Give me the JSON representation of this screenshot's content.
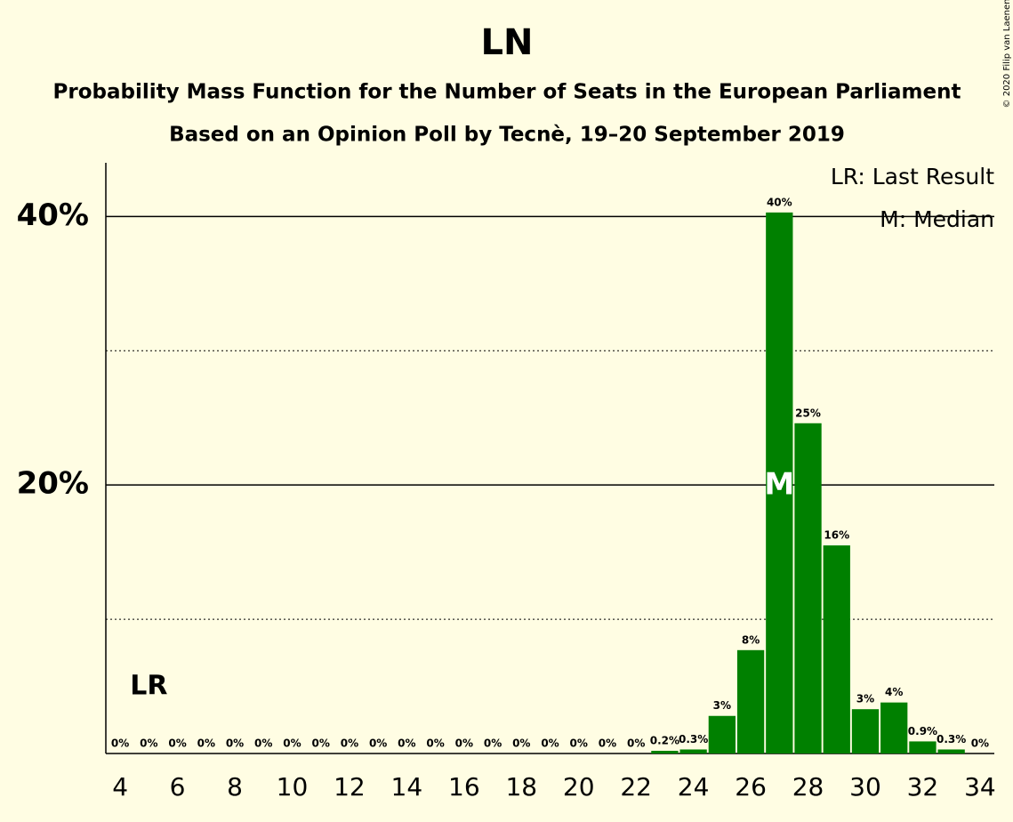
{
  "chart_data": {
    "type": "bar",
    "title": "LN",
    "subtitle": [
      "Probability Mass Function for the Number of Seats in the European Parliament",
      "Based on an Opinion Poll by Tecnè, 19–20 September 2019"
    ],
    "x": [
      4,
      5,
      6,
      7,
      8,
      9,
      10,
      11,
      12,
      13,
      14,
      15,
      16,
      17,
      18,
      19,
      20,
      21,
      22,
      23,
      24,
      25,
      26,
      27,
      28,
      29,
      30,
      31,
      32,
      33,
      34
    ],
    "values": [
      0,
      0,
      0,
      0,
      0,
      0,
      0,
      0,
      0,
      0,
      0,
      0,
      0,
      0,
      0,
      0,
      0,
      0,
      0,
      0.2,
      0.3,
      2.8,
      7.7,
      40.3,
      24.6,
      15.5,
      3.3,
      3.8,
      0.9,
      0.3,
      0
    ],
    "value_labels": [
      "0%",
      "0%",
      "0%",
      "0%",
      "0%",
      "0%",
      "0%",
      "0%",
      "0%",
      "0%",
      "0%",
      "0%",
      "0%",
      "0%",
      "0%",
      "0%",
      "0%",
      "0%",
      "0%",
      "0.2%",
      "0.3%",
      "3%",
      "8%",
      "40%",
      "25%",
      "16%",
      "3%",
      "4%",
      "0.9%",
      "0.3%",
      "0%"
    ],
    "color": "#008000",
    "xlim": [
      3.5,
      34.5
    ],
    "xticks": [
      4,
      6,
      8,
      10,
      12,
      14,
      16,
      18,
      20,
      22,
      24,
      26,
      28,
      30,
      32,
      34
    ],
    "ylim": [
      0,
      44
    ],
    "yticks": [
      {
        "value": 20,
        "label": "20%"
      },
      {
        "value": 40,
        "label": "40%"
      }
    ],
    "minor_yticks": [
      10,
      30
    ],
    "last_result": 5,
    "last_result_label": "LR",
    "median": 27,
    "median_label": "M",
    "legend": [
      "LR: Last Result",
      "M: Median"
    ],
    "legend_position": "upper right",
    "copyright": "© 2020 Filip van Laenen"
  }
}
